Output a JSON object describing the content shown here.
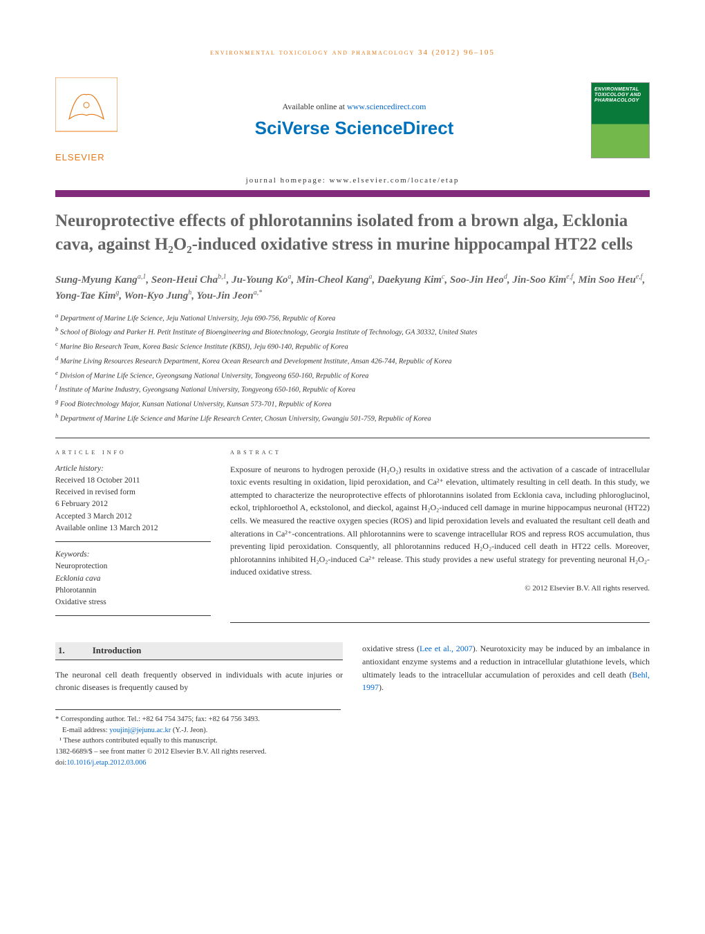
{
  "colors": {
    "accent_orange": "#e67817",
    "bar_purple": "#822b7a",
    "link_blue": "#0066cc",
    "title_gray": "#636363",
    "text": "#333333",
    "intro_bg": "#ebebeb",
    "cover_green_dark": "#0a7a3a",
    "cover_green_light": "#72b84a"
  },
  "running_head": "environmental toxicology and pharmacology 34 (2012) 96–105",
  "header": {
    "available_prefix": "Available online at ",
    "available_link_text": "www.sciencedirect.com",
    "brand_prefix": "SciVerse ",
    "brand_suffix": "ScienceDirect",
    "homepage": "journal homepage: www.elsevier.com/locate/etap",
    "publisher_name": "ELSEVIER",
    "cover_text": "ENVIRONMENTAL TOXICOLOGY AND PHARMACOLOGY"
  },
  "title": "Neuroprotective effects of phlorotannins isolated from a brown alga, Ecklonia cava, against H₂O₂-induced oxidative stress in murine hippocampal HT22 cells",
  "authors_html": "Sung-Myung Kang<sup>a,1</sup>, Seon-Heui Cha<sup>b,1</sup>, Ju-Young Ko<sup>a</sup>, Min-Cheol Kang<sup>a</sup>, Daekyung Kim<sup>c</sup>, Soo-Jin Heo<sup>d</sup>, Jin-Soo Kim<sup>e,f</sup>, Min Soo Heu<sup>e,f</sup>, Yong-Tae Kim<sup>g</sup>, Won-Kyo Jung<sup>h</sup>, You-Jin Jeon<sup>a,*</sup>",
  "affiliations": [
    "a Department of Marine Life Science, Jeju National University, Jeju 690-756, Republic of Korea",
    "b School of Biology and Parker H. Petit Institute of Bioengineering and Biotechnology, Georgia Institute of Technology, GA 30332, United States",
    "c Marine Bio Research Team, Korea Basic Science Institute (KBSI), Jeju 690-140, Republic of Korea",
    "d Marine Living Resources Research Department, Korea Ocean Research and Development Institute, Ansan 426-744, Republic of Korea",
    "e Division of Marine Life Science, Gyeongsang National University, Tongyeong 650-160, Republic of Korea",
    "f Institute of Marine Industry, Gyeongsang National University, Tongyeong 650-160, Republic of Korea",
    "g Food Biotechnology Major, Kunsan National University, Kunsan 573-701, Republic of Korea",
    "h Department of Marine Life Science and Marine Life Research Center, Chosun University, Gwangju 501-759, Republic of Korea"
  ],
  "article_info": {
    "head": "article info",
    "history_label": "Article history:",
    "history": [
      "Received 18 October 2011",
      "Received in revised form",
      "6 February 2012",
      "Accepted 3 March 2012",
      "Available online 13 March 2012"
    ],
    "keywords_label": "Keywords:",
    "keywords": [
      "Neuroprotection",
      "Ecklonia cava",
      "Phlorotannin",
      "Oxidative stress"
    ]
  },
  "abstract": {
    "head": "abstract",
    "text": "Exposure of neurons to hydrogen peroxide (H₂O₂) results in oxidative stress and the activation of a cascade of intracellular toxic events resulting in oxidation, lipid peroxidation, and Ca²⁺ elevation, ultimately resulting in cell death. In this study, we attempted to characterize the neuroprotective effects of phlorotannins isolated from Ecklonia cava, including phloroglucinol, eckol, triphloroethol A, eckstolonol, and dieckol, against H₂O₂-induced cell damage in murine hippocampus neuronal (HT22) cells. We measured the reactive oxygen species (ROS) and lipid peroxidation levels and evaluated the resultant cell death and alterations in Ca²⁺-concentrations. All phlorotannins were to scavenge intracellular ROS and repress ROS accumulation, thus preventing lipid peroxidation. Consquently, all phlorotannins reduced H₂O₂-induced cell death in HT22 cells. Moreover, phlorotannins inhibited H₂O₂-induced Ca²⁺ release. This study provides a new useful strategy for preventing neuronal H₂O₂-induced oxidative stress.",
    "copyright": "© 2012 Elsevier B.V. All rights reserved."
  },
  "intro": {
    "number": "1.",
    "title": "Introduction",
    "col1": "The neuronal cell death frequently observed in individuals with acute injuries or chronic diseases is frequently caused by",
    "col2_pre": "oxidative stress (",
    "col2_link1": "Lee et al., 2007",
    "col2_mid": "). Neurotoxicity may be induced by an imbalance in antioxidant enzyme systems and a reduction in intracellular glutathione levels, which ultimately leads to the intracellular accumulation of peroxides and cell death (",
    "col2_link2": "Behl, 1997",
    "col2_post": ")."
  },
  "footnotes": {
    "corresponding": "* Corresponding author. Tel.: +82 64 754 3475; fax: +82 64 756 3493.",
    "email_label": "E-mail address: ",
    "email": "youjinj@jejunu.ac.kr",
    "email_suffix": " (Y.-J. Jeon).",
    "equal": "¹ These authors contributed equally to this manuscript.",
    "issn": "1382-6689/$ – see front matter © 2012 Elsevier B.V. All rights reserved.",
    "doi_label": "doi:",
    "doi": "10.1016/j.etap.2012.03.006"
  }
}
